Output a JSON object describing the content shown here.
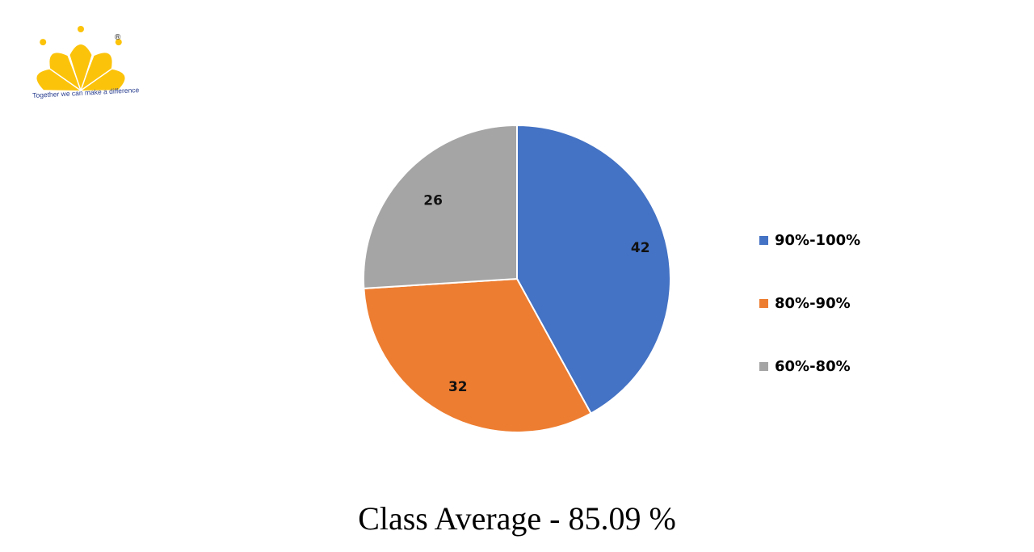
{
  "logo": {
    "tagline": "Together we can make a difference",
    "registered_mark": "®",
    "color": "#fcc30b"
  },
  "chart_data": {
    "type": "pie",
    "categories": [
      "90%-100%",
      "80%-90%",
      "60%-80%"
    ],
    "values": [
      42,
      32,
      26
    ],
    "colors": [
      "#4472c4",
      "#ed7d31",
      "#a5a5a5"
    ],
    "data_labels": [
      "42",
      "32",
      "26"
    ],
    "legend_position": "right",
    "start_angle": "12 o'clock, clockwise"
  },
  "caption": "Class Average - 85.09 %"
}
